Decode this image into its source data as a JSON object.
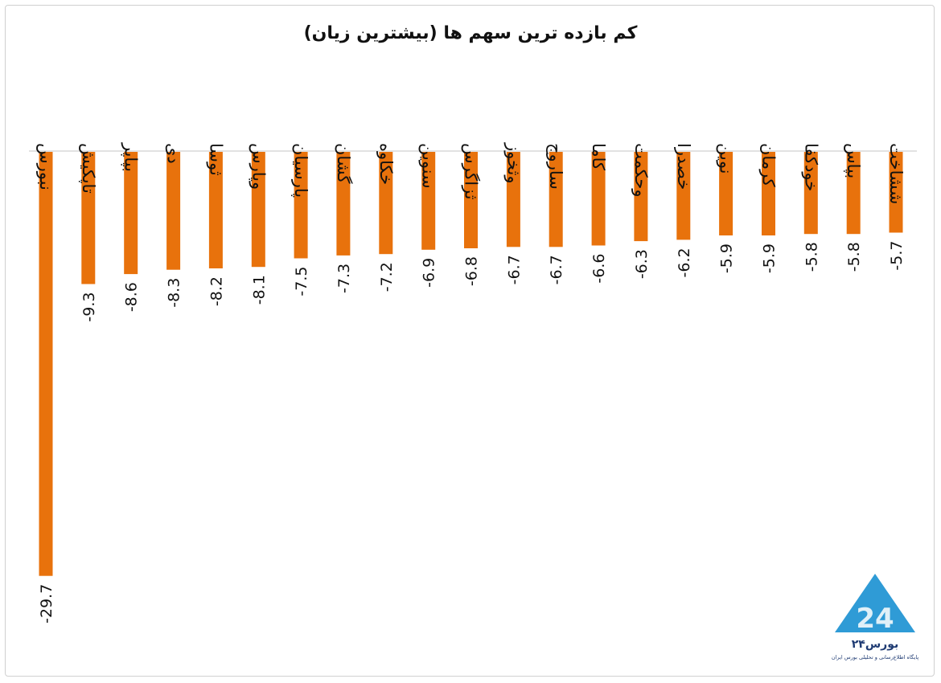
{
  "chart_data": {
    "type": "bar",
    "title": "کم بازده ترین سهم ها (بیشترین زیان)",
    "categories": [
      "نبورس",
      "تاپکیش",
      "بپاپر",
      "دی",
      "ثوسا",
      "وپارس",
      "پارسیان",
      "گشان",
      "خکاوه",
      "سنوین",
      "ثزاگرس",
      "وثخوز",
      "ساروج",
      "کاما",
      "وحکمت",
      "خصدرا",
      "نوین",
      "کرمان",
      "خودکفا",
      "بپاس",
      "ششاخت"
    ],
    "values": [
      -29.7,
      -9.3,
      -8.6,
      -8.3,
      -8.2,
      -8.1,
      -7.5,
      -7.3,
      -7.2,
      -6.9,
      -6.8,
      -6.7,
      -6.7,
      -6.6,
      -6.3,
      -6.2,
      -5.9,
      -5.9,
      -5.8,
      -5.8,
      -5.7
    ],
    "value_labels": [
      "-29.7",
      "-9.3",
      "-8.6",
      "-8.3",
      "-8.2",
      "-8.1",
      "-7.5",
      "-7.3",
      "-7.2",
      "-6.9",
      "-6.8",
      "-6.7",
      "-6.7",
      "-6.6",
      "-6.3",
      "-6.2",
      "-5.9",
      "-5.9",
      "-5.8",
      "-5.8",
      "-5.7"
    ],
    "xlabel": "",
    "ylabel": "",
    "ylim": [
      -30,
      0
    ],
    "grid": false,
    "legend": "none",
    "bar_color": "#E8720C",
    "axis_color": "#D9D9D9"
  },
  "logo": {
    "name": "بورس۲۴",
    "tagline": "پایگاه اطلاع‌رسانی و تحلیلی بورس ایران",
    "icon": "bourse24-triangle-icon",
    "color_light": "#2F9BD6",
    "color_dark": "#1F3B73"
  }
}
